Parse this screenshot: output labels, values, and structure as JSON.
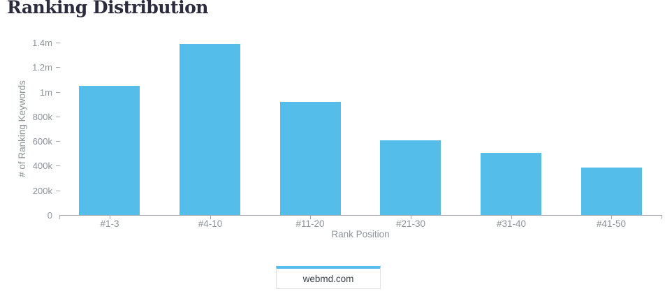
{
  "page_title": "Ranking Distribution",
  "chart_data": {
    "type": "bar",
    "title": "Ranking Distribution",
    "categories": [
      "#1-3",
      "#4-10",
      "#11-20",
      "#21-30",
      "#31-40",
      "#41-50"
    ],
    "series": [
      {
        "name": "webmd.com",
        "values": [
          1050000,
          1390000,
          920000,
          605000,
          505000,
          385000
        ]
      }
    ],
    "xlabel": "Rank Position",
    "ylabel": "# of Ranking Keywords",
    "ylim": [
      0,
      1400000
    ],
    "yticks": [
      {
        "label": "0",
        "value": 0
      },
      {
        "label": "200k",
        "value": 200000
      },
      {
        "label": "400k",
        "value": 400000
      },
      {
        "label": "600k",
        "value": 600000
      },
      {
        "label": "800k",
        "value": 800000
      },
      {
        "label": "1m",
        "value": 1000000
      },
      {
        "label": "1.2m",
        "value": 1200000
      },
      {
        "label": "1.4m",
        "value": 1400000
      }
    ],
    "grid": false,
    "legend_position": "bottom"
  },
  "legend": {
    "items": [
      {
        "label": "webmd.com",
        "color": "#54BDEA"
      }
    ]
  },
  "colors": {
    "bar": "#54BDEA",
    "axis": "#A6AAB0",
    "tick_label": "#8F939A",
    "title": "#2B2B3D",
    "legend_border": "#DFE1E5",
    "legend_text": "#3E434B"
  }
}
